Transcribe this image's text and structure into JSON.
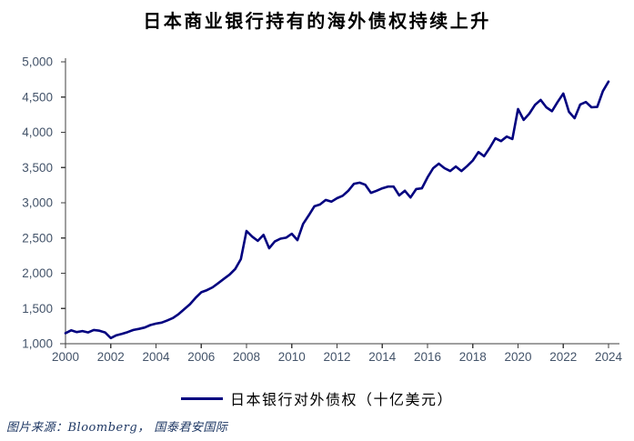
{
  "title": "日本商业银行持有的海外债权持续上升",
  "legend": {
    "label": "日本银行对外债权（十亿美元）"
  },
  "source": "图片来源：Bloomberg， 国泰君安国际",
  "colors": {
    "line": "#00007f",
    "axis": "#3f3f3f",
    "tick_label": "#44546a",
    "source_text": "#1f3864"
  },
  "chart_data": {
    "type": "line",
    "title": "日本商业银行持有的海外债权持续上升",
    "xlabel": "",
    "ylabel": "",
    "grid": false,
    "legend_position": "bottom",
    "xlim": [
      2000,
      2024
    ],
    "ylim": [
      1000,
      5000
    ],
    "y_ticks": [
      1000,
      1500,
      2000,
      2500,
      3000,
      3500,
      4000,
      4500,
      5000
    ],
    "y_tick_labels": [
      "1,000",
      "1,500",
      "2,000",
      "2,500",
      "3,000",
      "3,500",
      "4,000",
      "4,500",
      "5,000"
    ],
    "x_ticks": [
      2000,
      2002,
      2004,
      2006,
      2008,
      2010,
      2012,
      2014,
      2016,
      2018,
      2020,
      2022,
      2024
    ],
    "x_tick_labels": [
      "2000",
      "2002",
      "2004",
      "2006",
      "2008",
      "2010",
      "2012",
      "2014",
      "2016",
      "2018",
      "2020",
      "2022",
      "2024"
    ],
    "series": [
      {
        "name": "日本银行对外债权（十亿美元）",
        "x_start": 2000.0,
        "x_step": 0.25,
        "unit": "十亿美元",
        "values": [
          1150,
          1190,
          1165,
          1180,
          1160,
          1195,
          1185,
          1160,
          1080,
          1120,
          1140,
          1165,
          1195,
          1210,
          1230,
          1265,
          1285,
          1300,
          1330,
          1365,
          1420,
          1490,
          1560,
          1650,
          1730,
          1760,
          1800,
          1860,
          1920,
          1980,
          2060,
          2200,
          2600,
          2520,
          2460,
          2545,
          2355,
          2450,
          2490,
          2505,
          2560,
          2470,
          2700,
          2820,
          2950,
          2975,
          3040,
          3015,
          3065,
          3100,
          3170,
          3270,
          3285,
          3255,
          3140,
          3170,
          3205,
          3230,
          3230,
          3105,
          3170,
          3075,
          3195,
          3205,
          3360,
          3490,
          3555,
          3490,
          3450,
          3515,
          3450,
          3520,
          3600,
          3720,
          3660,
          3780,
          3915,
          3875,
          3940,
          3905,
          4330,
          4175,
          4265,
          4390,
          4460,
          4355,
          4300,
          4430,
          4550,
          4290,
          4200,
          4395,
          4430,
          4355,
          4360,
          4585,
          4720
        ]
      }
    ]
  }
}
